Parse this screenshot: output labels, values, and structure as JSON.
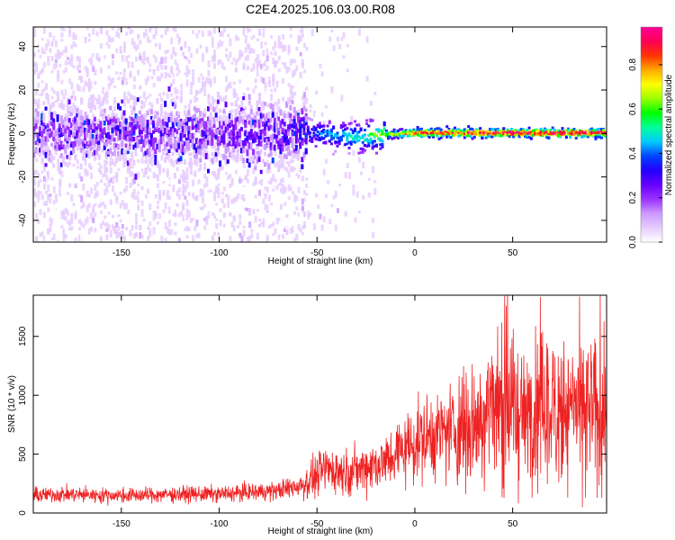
{
  "title": "C2E4.2025.106.03.00.R08",
  "chart_data": [
    {
      "type": "heatmap",
      "title": "C2E4.2025.106.03.00.R08",
      "xlabel": "Height of straight line (km)",
      "ylabel": "Frequency (Hz)",
      "xlim": [
        -195,
        98
      ],
      "ylim": [
        -50,
        49
      ],
      "xticks": [
        -150,
        -100,
        -50,
        0,
        50
      ],
      "yticks": [
        -40,
        -20,
        0,
        20,
        40
      ],
      "colorbar": {
        "label": "Normalized spectral amplitude",
        "range": [
          0,
          0.97
        ],
        "ticks": [
          0.0,
          0.2,
          0.4,
          0.6,
          0.8
        ],
        "colormap": [
          "#ffffff",
          "#e6ccff",
          "#cc99ff",
          "#9b30ff",
          "#6600ff",
          "#2200ff",
          "#0044ff",
          "#00ccff",
          "#00ff99",
          "#00ff00",
          "#99ff00",
          "#ffff00",
          "#ffaa00",
          "#ff3300",
          "#ff0055",
          "#ff0099"
        ]
      },
      "ridge_profile": {
        "x": [
          -195,
          -150,
          -100,
          -60,
          -50,
          -40,
          -30,
          -20,
          -10,
          0,
          25,
          50,
          75,
          98
        ],
        "center_hz": [
          0,
          0,
          0,
          0,
          0,
          -1,
          -2,
          -1,
          -0.5,
          0,
          0,
          0,
          0,
          0
        ],
        "peak_amplitude": [
          0.15,
          0.18,
          0.18,
          0.25,
          0.4,
          0.45,
          0.5,
          0.6,
          0.7,
          0.85,
          0.9,
          0.92,
          0.95,
          0.95
        ]
      }
    },
    {
      "type": "line",
      "xlabel": "Height of straight line (km)",
      "ylabel": "SNR (10 * v/v)",
      "xlim": [
        -195,
        98
      ],
      "ylim": [
        0,
        1850
      ],
      "xticks": [
        -150,
        -100,
        -50,
        0,
        50
      ],
      "yticks": [
        0,
        500,
        1000,
        1500
      ],
      "color": "#ee2222",
      "x": [
        -195,
        -180,
        -160,
        -140,
        -120,
        -100,
        -90,
        -80,
        -70,
        -60,
        -55,
        -50,
        -45,
        -40,
        -35,
        -30,
        -25,
        -20,
        -15,
        -10,
        -5,
        0,
        5,
        10,
        15,
        20,
        25,
        30,
        35,
        40,
        45,
        50,
        55,
        60,
        65,
        70,
        75,
        80,
        85,
        90,
        98
      ],
      "y": [
        150,
        160,
        150,
        150,
        160,
        160,
        170,
        180,
        190,
        230,
        260,
        320,
        380,
        360,
        350,
        360,
        390,
        420,
        430,
        500,
        560,
        600,
        640,
        660,
        690,
        710,
        740,
        780,
        850,
        950,
        930,
        900,
        800,
        870,
        900,
        850,
        920,
        860,
        880,
        870,
        850
      ]
    }
  ]
}
